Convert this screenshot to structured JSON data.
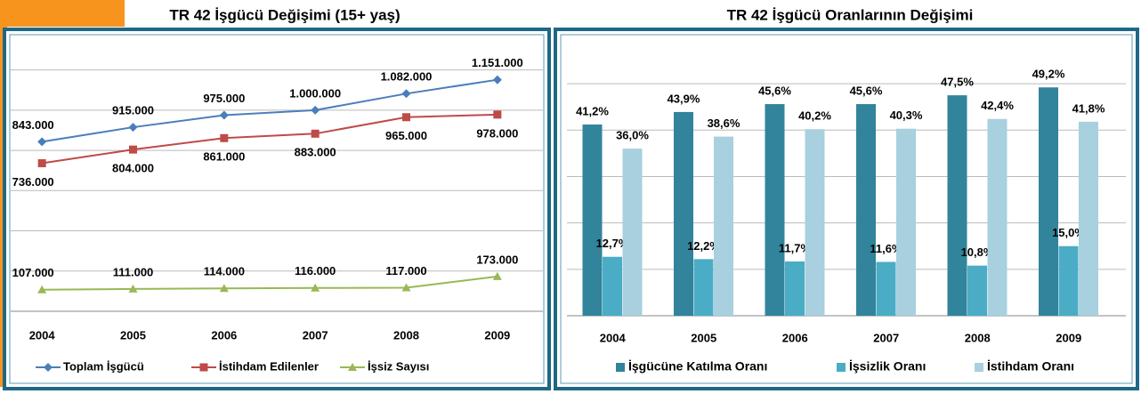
{
  "chart_data": [
    {
      "type": "line",
      "title": "TR 42 İşgücü Değişimi (15+ yaş)",
      "categories": [
        "2004",
        "2005",
        "2006",
        "2007",
        "2008",
        "2009"
      ],
      "series": [
        {
          "name": "Toplam İşgücü",
          "color": "#4a7ebb",
          "values": [
            843000,
            915000,
            975000,
            1000000,
            1082000,
            1151000
          ],
          "value_labels": [
            "843.000",
            "915.000",
            "975.000",
            "1.000.000",
            "1.082.000",
            "1.151.000"
          ]
        },
        {
          "name": "İstihdam Edilenler",
          "color": "#be4b48",
          "values": [
            736000,
            804000,
            861000,
            883000,
            965000,
            978000
          ],
          "value_labels": [
            "736.000",
            "804.000",
            "861.000",
            "883.000",
            "965.000",
            "978.000"
          ]
        },
        {
          "name": "İşsiz Sayısı",
          "color": "#98b954",
          "values": [
            107000,
            111000,
            114000,
            116000,
            117000,
            173000
          ],
          "value_labels": [
            "107.000",
            "111.000",
            "114.000",
            "116.000",
            "117.000",
            "173.000"
          ]
        }
      ],
      "ylim": [
        0,
        1300000
      ],
      "yticks": [
        0,
        200000,
        400000,
        600000,
        800000,
        1000000,
        1200000
      ],
      "grid": true,
      "legend": "bottom"
    },
    {
      "type": "bar",
      "title": "TR 42 İşgücü Oranlarının Değişimi",
      "categories": [
        "2004",
        "2005",
        "2006",
        "2007",
        "2008",
        "2009"
      ],
      "series": [
        {
          "name": "İşgücüne Katılma Oranı",
          "color": "#31849b",
          "values": [
            41.2,
            43.9,
            45.6,
            45.6,
            47.5,
            49.2
          ],
          "value_labels": [
            "41,2%",
            "43,9%",
            "45,6%",
            "45,6%",
            "47,5%",
            "49,2%"
          ]
        },
        {
          "name": "İşsizlik Oranı",
          "color": "#4bacc6",
          "values": [
            12.7,
            12.2,
            11.7,
            11.6,
            10.8,
            15.0
          ],
          "value_labels": [
            "12,7%",
            "12,2%",
            "11,7%",
            "11,6%",
            "10,8%",
            "15,0%"
          ]
        },
        {
          "name": "İstihdam Oranı",
          "color": "#a8d0df",
          "values": [
            36.0,
            38.6,
            40.2,
            40.3,
            42.4,
            41.8
          ],
          "value_labels": [
            "36,0%",
            "38,6%",
            "40,2%",
            "40,3%",
            "42,4%",
            "41,8%"
          ]
        }
      ],
      "ylim": [
        0,
        55
      ],
      "yticks": [
        0,
        10,
        20,
        30,
        40,
        50
      ],
      "grid": true,
      "legend": "bottom"
    }
  ]
}
